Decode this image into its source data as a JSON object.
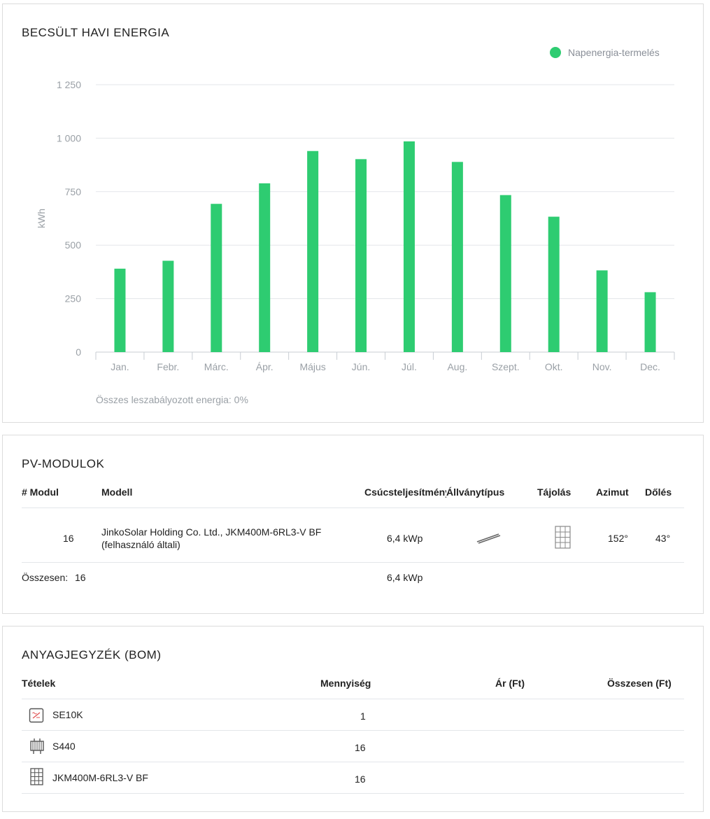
{
  "energy": {
    "title": "BECSÜLT HAVI ENERGIA",
    "legend_label": "Napenergia-termelés",
    "note": "Összes leszabályozott energia: 0%"
  },
  "chart_data": {
    "type": "bar",
    "categories": [
      "Jan.",
      "Febr.",
      "Márc.",
      "Ápr.",
      "Május",
      "Jún.",
      "Júl.",
      "Aug.",
      "Szept.",
      "Okt.",
      "Nov.",
      "Dec."
    ],
    "series": [
      {
        "name": "Napenergia-termelés",
        "values": [
          390,
          427,
          693,
          789,
          940,
          902,
          985,
          889,
          734,
          633,
          382,
          280
        ],
        "color": "#2ecc71"
      }
    ],
    "yticks": [
      0,
      250,
      500,
      750,
      1000,
      1250
    ],
    "ytick_labels": [
      "0",
      "250",
      "500",
      "750",
      "1 000",
      "1 250"
    ],
    "ylabel": "kWh",
    "ylim": [
      0,
      1250
    ],
    "grid": true,
    "legend": "top-right"
  },
  "pv": {
    "title": "PV-MODULOK",
    "headers": {
      "count": "# Modul",
      "model": "Modell",
      "peak": "Csúcsteljesítmény",
      "mount": "Állványtípus",
      "orientation": "Tájolás",
      "azimuth": "Azimut",
      "tilt": "Dőlés"
    },
    "row": {
      "count": "16",
      "model_line1": "JinkoSolar Holding Co. Ltd., JKM400M-6RL3-V BF",
      "model_line2": "(felhasználó általi)",
      "peak": "6,4 kWp",
      "mount_icon": "tilted-mount-icon",
      "orientation_icon": "portrait-panel-icon",
      "azimuth": "152°",
      "tilt": "43°"
    },
    "total": {
      "label": "Összesen:",
      "count": "16",
      "peak": "6,4 kWp"
    }
  },
  "bom": {
    "title": "ANYAGJEGYZÉK (BOM)",
    "headers": {
      "items": "Tételek",
      "quantity": "Mennyiség",
      "price": "Ár (Ft)",
      "total": "Összesen (Ft)"
    },
    "rows": [
      {
        "icon": "inverter-icon",
        "name": "SE10K",
        "quantity": "1"
      },
      {
        "icon": "optimizer-icon",
        "name": "S440",
        "quantity": "16"
      },
      {
        "icon": "solar-panel-icon",
        "name": "JKM400M-6RL3-V BF",
        "quantity": "16"
      }
    ]
  }
}
